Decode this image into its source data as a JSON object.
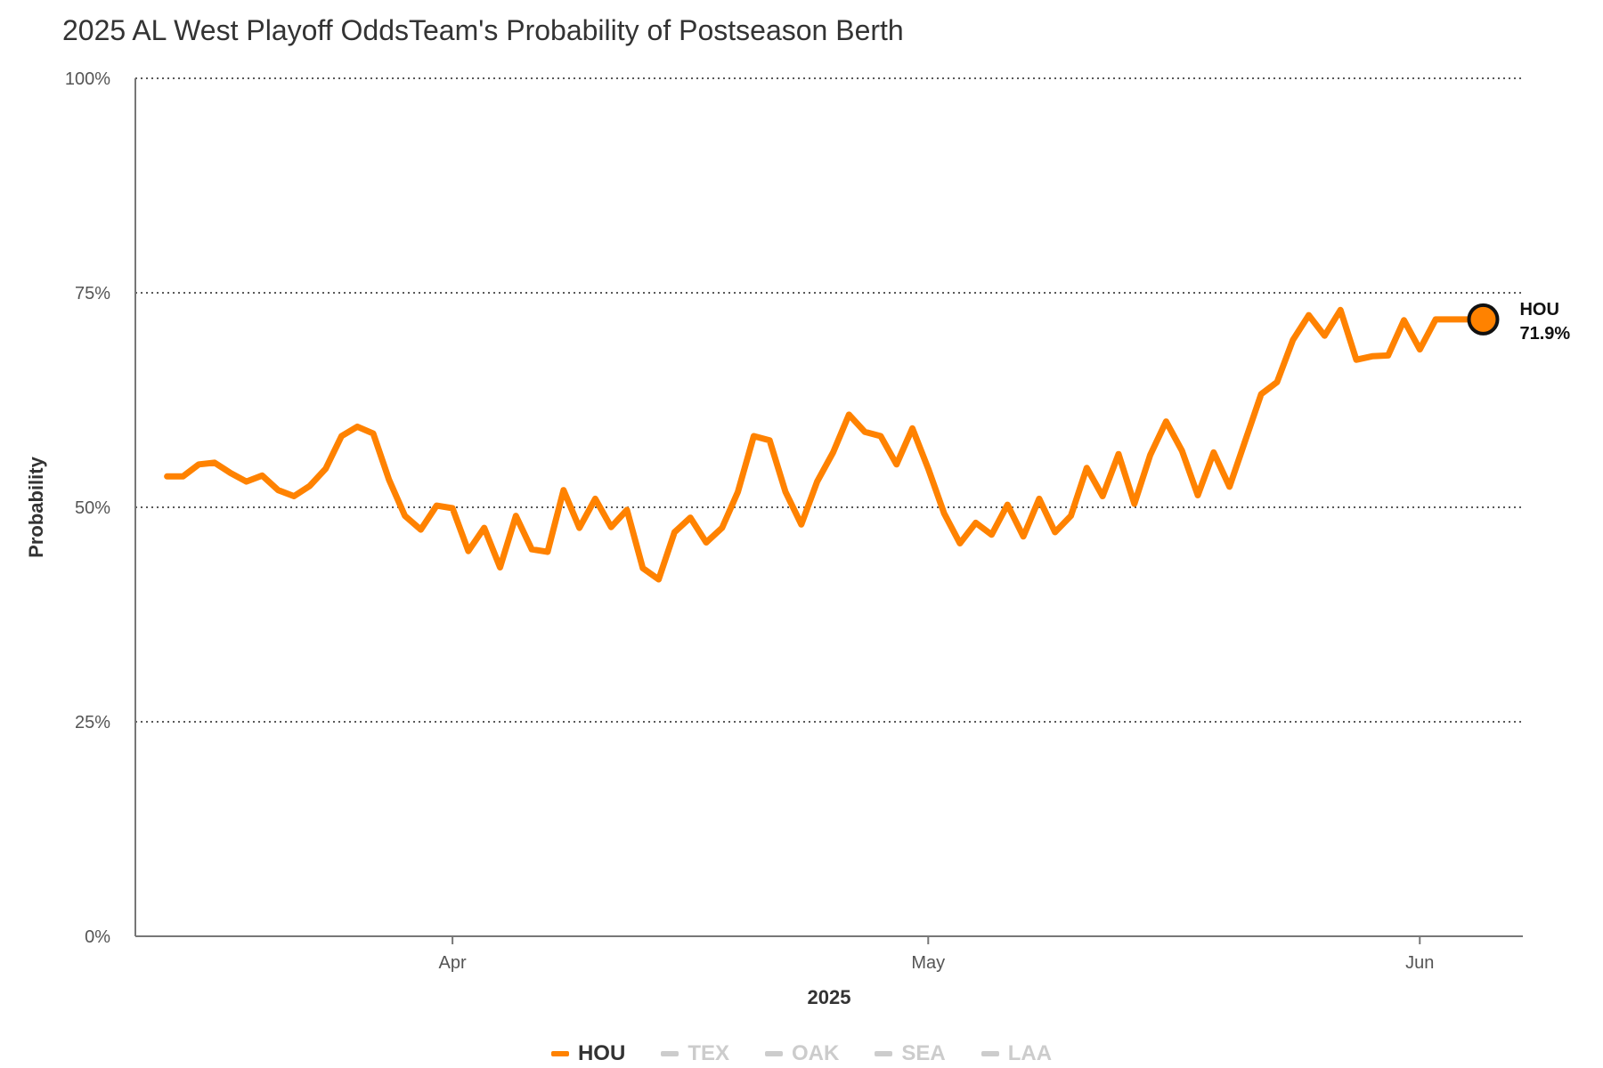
{
  "header": {
    "title": "2025 AL West Playoff OddsTeam's Probability of Postseason Berth"
  },
  "chart_data": {
    "type": "line",
    "title": "2025 AL West Playoff OddsTeam's Probability of Postseason Berth",
    "xlabel": "2025",
    "ylabel": "Probability",
    "ylim": [
      0,
      100
    ],
    "y_ticks": [
      "0%",
      "25%",
      "50%",
      "75%",
      "100%"
    ],
    "x_ticks": [
      "Apr",
      "May",
      "Jun"
    ],
    "grid": "horizontal dotted",
    "legend_position": "bottom-center",
    "x": [
      "2025-03-14",
      "2025-03-15",
      "2025-03-16",
      "2025-03-17",
      "2025-03-18",
      "2025-03-19",
      "2025-03-20",
      "2025-03-21",
      "2025-03-22",
      "2025-03-23",
      "2025-03-24",
      "2025-03-25",
      "2025-03-26",
      "2025-03-27",
      "2025-03-28",
      "2025-03-29",
      "2025-03-30",
      "2025-03-31",
      "2025-04-01",
      "2025-04-02",
      "2025-04-03",
      "2025-04-04",
      "2025-04-05",
      "2025-04-06",
      "2025-04-07",
      "2025-04-08",
      "2025-04-09",
      "2025-04-10",
      "2025-04-11",
      "2025-04-12",
      "2025-04-13",
      "2025-04-14",
      "2025-04-15",
      "2025-04-16",
      "2025-04-17",
      "2025-04-18",
      "2025-04-19",
      "2025-04-20",
      "2025-04-21",
      "2025-04-22",
      "2025-04-23",
      "2025-04-24",
      "2025-04-25",
      "2025-04-26",
      "2025-04-27",
      "2025-04-28",
      "2025-04-29",
      "2025-04-30",
      "2025-05-01",
      "2025-05-02",
      "2025-05-03",
      "2025-05-04",
      "2025-05-05",
      "2025-05-06",
      "2025-05-07",
      "2025-05-08",
      "2025-05-09",
      "2025-05-10",
      "2025-05-11",
      "2025-05-12",
      "2025-05-13",
      "2025-05-14",
      "2025-05-15",
      "2025-05-16",
      "2025-05-17",
      "2025-05-18",
      "2025-05-19",
      "2025-05-20",
      "2025-05-21",
      "2025-05-22",
      "2025-05-23",
      "2025-05-24",
      "2025-05-25",
      "2025-05-26",
      "2025-05-27",
      "2025-05-28",
      "2025-05-29",
      "2025-05-30",
      "2025-05-31",
      "2025-06-01",
      "2025-06-02",
      "2025-06-03",
      "2025-06-04",
      "2025-06-05"
    ],
    "series": [
      {
        "name": "HOU",
        "color": "#ff8200",
        "values": [
          53.6,
          53.6,
          55.0,
          55.2,
          54.0,
          53.0,
          53.7,
          52.0,
          51.3,
          52.5,
          54.5,
          58.3,
          59.4,
          58.6,
          53.2,
          49.0,
          47.4,
          50.2,
          49.9,
          44.9,
          47.6,
          43.0,
          49.0,
          45.1,
          44.8,
          52.0,
          47.6,
          51.0,
          47.7,
          49.7,
          42.9,
          41.6,
          47.1,
          48.8,
          45.9,
          47.6,
          51.8,
          58.3,
          57.8,
          51.8,
          48.0,
          53.0,
          56.4,
          60.8,
          58.8,
          58.3,
          55.0,
          59.2,
          54.5,
          49.3,
          45.8,
          48.2,
          46.8,
          50.3,
          46.6,
          51.0,
          47.1,
          49.0,
          54.6,
          51.3,
          56.2,
          50.4,
          56.1,
          60.0,
          56.6,
          51.4,
          56.4,
          52.4,
          57.8,
          63.2,
          64.6,
          69.5,
          72.4,
          70.0,
          73.0,
          67.2,
          67.6,
          67.7,
          71.8,
          68.4,
          71.9,
          71.9,
          71.9,
          71.9
        ],
        "end_label": "HOU",
        "end_value_label": "71.9%"
      }
    ]
  },
  "legend": {
    "items": [
      {
        "label": "HOU",
        "color": "#ff8200",
        "active": true
      },
      {
        "label": "TEX",
        "color": "#cccccc",
        "active": false
      },
      {
        "label": "OAK",
        "color": "#cccccc",
        "active": false
      },
      {
        "label": "SEA",
        "color": "#cccccc",
        "active": false
      },
      {
        "label": "LAA",
        "color": "#cccccc",
        "active": false
      }
    ]
  }
}
